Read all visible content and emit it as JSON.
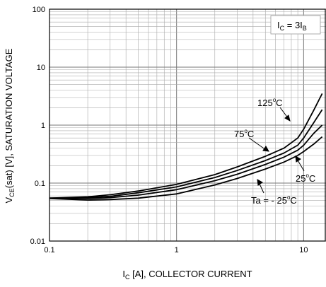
{
  "chart_data": {
    "type": "line",
    "x_scale": "log",
    "y_scale": "log",
    "xlim": [
      0.1,
      15
    ],
    "ylim": [
      0.01,
      100
    ],
    "grid": true,
    "xlabel": {
      "prefix": "I",
      "sub": "C",
      "rest": " [A], COLLECTOR CURRENT"
    },
    "ylabel": {
      "prefix": "V",
      "sub": "CE",
      "rest": "(sat) [V], SATURATION VOLTAGE"
    },
    "x_ticks": [
      {
        "value": 0.1,
        "label": "0.1"
      },
      {
        "value": 1,
        "label": "1"
      },
      {
        "value": 10,
        "label": "10"
      }
    ],
    "y_ticks": [
      {
        "value": 0.01,
        "label": "0.01"
      },
      {
        "value": 0.1,
        "label": "0.1"
      },
      {
        "value": 1,
        "label": "1"
      },
      {
        "value": 10,
        "label": "10"
      },
      {
        "value": 100,
        "label": "100"
      }
    ],
    "condition": {
      "text_a": "I",
      "sub_a": "C",
      "text_mid": " = 3I",
      "sub_b": "B"
    },
    "series": [
      {
        "name": "125°C",
        "label_main": "125",
        "label_deg": "o",
        "label_unit": "C",
        "x": [
          0.1,
          0.2,
          0.3,
          0.5,
          1,
          2,
          3,
          5,
          7,
          9,
          10,
          12,
          14
        ],
        "y": [
          0.055,
          0.058,
          0.063,
          0.073,
          0.095,
          0.14,
          0.19,
          0.29,
          0.4,
          0.6,
          0.85,
          1.8,
          3.5
        ]
      },
      {
        "name": "75°C",
        "label_main": "75",
        "label_deg": "o",
        "label_unit": "C",
        "x": [
          0.1,
          0.2,
          0.3,
          0.5,
          1,
          2,
          3,
          5,
          7,
          9,
          10,
          12,
          14
        ],
        "y": [
          0.055,
          0.056,
          0.059,
          0.068,
          0.086,
          0.125,
          0.165,
          0.245,
          0.33,
          0.45,
          0.6,
          1.1,
          1.85
        ]
      },
      {
        "name": "25°C",
        "label_main": "25",
        "label_deg": "o",
        "label_unit": "C",
        "x": [
          0.1,
          0.2,
          0.3,
          0.5,
          1,
          2,
          3,
          5,
          7,
          9,
          10,
          12,
          14
        ],
        "y": [
          0.055,
          0.054,
          0.056,
          0.062,
          0.077,
          0.11,
          0.142,
          0.21,
          0.28,
          0.37,
          0.45,
          0.72,
          1.0
        ]
      },
      {
        "name": "Ta = - 25°C",
        "label_main": "Ta = - 25",
        "label_deg": "o",
        "label_unit": "C",
        "x": [
          0.1,
          0.2,
          0.3,
          0.5,
          1,
          2,
          3,
          5,
          7,
          9,
          10,
          12,
          14
        ],
        "y": [
          0.054,
          0.051,
          0.052,
          0.055,
          0.065,
          0.093,
          0.12,
          0.175,
          0.23,
          0.3,
          0.35,
          0.47,
          0.63
        ]
      }
    ]
  }
}
